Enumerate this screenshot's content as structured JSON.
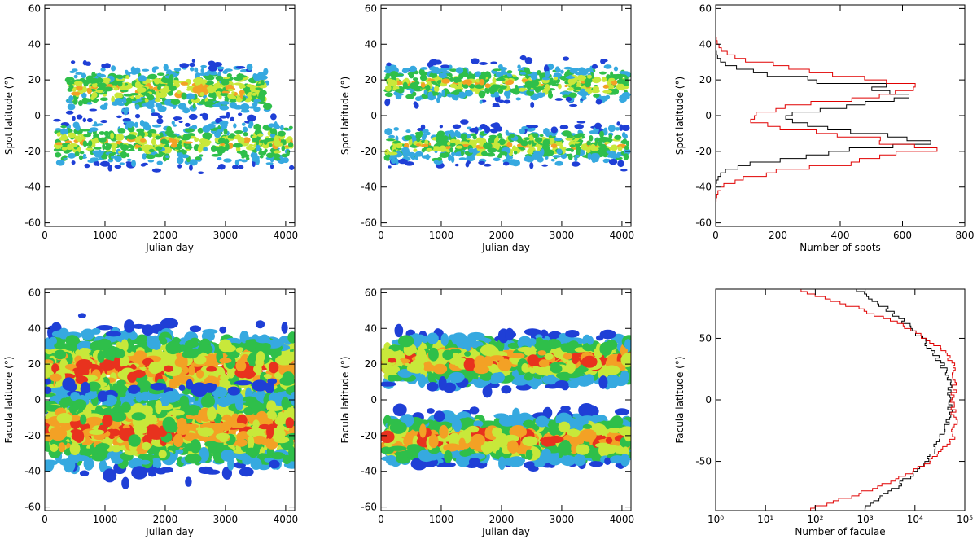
{
  "colors": {
    "level1": "#1f3fd6",
    "level2": "#36a9e0",
    "level3": "#2fbf4a",
    "level4": "#c8e83a",
    "level5": "#f3a125",
    "level6": "#e8321e",
    "hist_black": "#000000",
    "hist_red": "#e00000"
  },
  "chart_data": [
    {
      "id": "spot-contour-left",
      "type": "heatmap",
      "xlabel": "Julian day",
      "ylabel": "Spot latitude (°)",
      "xlim": [
        0,
        4150
      ],
      "ylim": [
        -62,
        62
      ],
      "xticks": [
        "0",
        "1000",
        "2000",
        "3000",
        "4000"
      ],
      "yticks": [
        "-60",
        "-40",
        "-20",
        "0",
        "20",
        "40",
        "60"
      ],
      "bands": [
        {
          "x_start": 400,
          "x_end": 3700,
          "lat_center": 15,
          "lat_width": 10,
          "intensity": 0.75
        },
        {
          "x_start": 200,
          "x_end": 4100,
          "lat_center": -15,
          "lat_width": 10,
          "intensity": 0.7
        }
      ]
    },
    {
      "id": "spot-contour-middle",
      "type": "heatmap",
      "xlabel": "Julian day",
      "ylabel": "Spot latitude (°)",
      "xlim": [
        0,
        4150
      ],
      "ylim": [
        -62,
        62
      ],
      "xticks": [
        "0",
        "1000",
        "2000",
        "3000",
        "4000"
      ],
      "yticks": [
        "-60",
        "-40",
        "-20",
        "0",
        "20",
        "40",
        "60"
      ],
      "bands": [
        {
          "x_start": 100,
          "x_end": 4100,
          "lat_center": 18,
          "lat_width": 8,
          "intensity": 0.7
        },
        {
          "x_start": 100,
          "x_end": 4100,
          "lat_center": -17,
          "lat_width": 8,
          "intensity": 0.7
        }
      ]
    },
    {
      "id": "spot-histogram",
      "type": "line",
      "xlabel": "Number of spots",
      "ylabel": "Spot latitude (°)",
      "xlim": [
        0,
        800
      ],
      "ylim": [
        -62,
        62
      ],
      "xticks": [
        "0",
        "200",
        "400",
        "600",
        "800"
      ],
      "yticks": [
        "-60",
        "-40",
        "-20",
        "0",
        "20",
        "40",
        "60"
      ],
      "series": [
        {
          "color": "black",
          "peaks": [
            {
              "lat": 13,
              "amp": 620,
              "sigma": 7
            },
            {
              "lat": -13,
              "amp": 630,
              "sigma": 7
            }
          ]
        },
        {
          "color": "red",
          "peaks": [
            {
              "lat": 17,
              "amp": 610,
              "sigma": 8
            },
            {
              "lat": -18,
              "amp": 690,
              "sigma": 8
            }
          ]
        }
      ]
    },
    {
      "id": "facula-contour-left",
      "type": "heatmap",
      "xlabel": "Julian day",
      "ylabel": "Facula latitude (°)",
      "xlim": [
        0,
        4150
      ],
      "ylim": [
        -62,
        62
      ],
      "xticks": [
        "0",
        "1000",
        "2000",
        "3000",
        "4000"
      ],
      "yticks": [
        "-60",
        "-40",
        "-20",
        "0",
        "20",
        "40",
        "60"
      ],
      "bands": [
        {
          "x_start": 0,
          "x_end": 4150,
          "lat_center": 17,
          "lat_width": 16,
          "intensity": 0.95
        },
        {
          "x_start": 0,
          "x_end": 4150,
          "lat_center": -17,
          "lat_width": 16,
          "intensity": 0.95
        }
      ]
    },
    {
      "id": "facula-contour-middle",
      "type": "heatmap",
      "xlabel": "Julian day",
      "ylabel": "Facula latitude (°)",
      "xlim": [
        0,
        4150
      ],
      "ylim": [
        -62,
        62
      ],
      "xticks": [
        "0",
        "1000",
        "2000",
        "3000",
        "4000"
      ],
      "yticks": [
        "-60",
        "-40",
        "-20",
        "0",
        "20",
        "40",
        "60"
      ],
      "bands": [
        {
          "x_start": 100,
          "x_end": 4150,
          "lat_center": 22,
          "lat_width": 10,
          "intensity": 0.95
        },
        {
          "x_start": 100,
          "x_end": 4150,
          "lat_center": -22,
          "lat_width": 10,
          "intensity": 0.95
        }
      ]
    },
    {
      "id": "facula-histogram",
      "type": "line",
      "xlabel": "Number of faculae",
      "ylabel": "Facula latitude (°)",
      "xlim": [
        1,
        100000
      ],
      "xscale": "log",
      "ylim": [
        -90,
        90
      ],
      "xticks": [
        "10⁰",
        "10¹",
        "10²",
        "10³",
        "10⁴",
        "10⁵"
      ],
      "yticks": [
        "-50",
        "0",
        "50"
      ],
      "series": [
        {
          "color": "black",
          "peaks": [
            {
              "lat": 13,
              "amp": 30000,
              "sigma": 28
            },
            {
              "lat": -13,
              "amp": 30000,
              "sigma": 28
            }
          ]
        },
        {
          "color": "red",
          "peaks": [
            {
              "lat": 22,
              "amp": 60000,
              "sigma": 18
            },
            {
              "lat": -22,
              "amp": 60000,
              "sigma": 18
            }
          ]
        }
      ]
    }
  ]
}
